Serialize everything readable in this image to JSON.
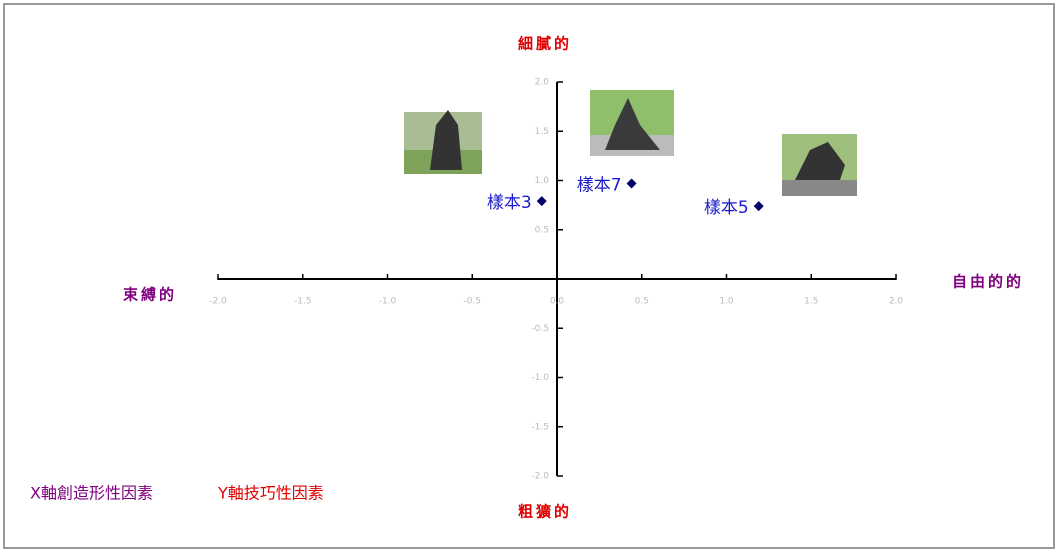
{
  "chart_data": {
    "type": "scatter",
    "x": [
      -0.09,
      0.44,
      1.19
    ],
    "y": [
      0.79,
      0.97,
      0.74
    ],
    "point_labels": [
      "樣本3",
      "樣本7",
      "樣本5"
    ],
    "color": "#000066",
    "label_color": "#1a1acc",
    "xlim": [
      -2,
      2
    ],
    "ylim": [
      -2,
      2
    ],
    "xticks": [
      {
        "value": -2,
        "label": "-2.0"
      },
      {
        "value": -1.5,
        "label": "-1.5"
      },
      {
        "value": -1,
        "label": "-1.0"
      },
      {
        "value": -0.5,
        "label": "-0.5"
      },
      {
        "value": 0,
        "label": "0.0"
      },
      {
        "value": 0.5,
        "label": "0.5"
      },
      {
        "value": 1,
        "label": "1.0"
      },
      {
        "value": 1.5,
        "label": "1.5"
      },
      {
        "value": 2,
        "label": "2.0"
      }
    ],
    "yticks": [
      {
        "value": 2,
        "label": "2.0"
      },
      {
        "value": 1.5,
        "label": "1.5"
      },
      {
        "value": 1,
        "label": "1.0"
      },
      {
        "value": 0.5,
        "label": "0.5"
      },
      {
        "value": -0.5,
        "label": "-0.5"
      },
      {
        "value": -1,
        "label": "-1.0"
      },
      {
        "value": -1.5,
        "label": "-1.5"
      },
      {
        "value": -2,
        "label": "-2.0"
      }
    ],
    "pole_labels": {
      "top": "細膩的",
      "bottom": "粗獷的",
      "left": "束縛的",
      "right": "自由的的"
    },
    "axis_legend": {
      "x": "X軸創造形性因素",
      "y": "Y軸技巧性因素"
    }
  }
}
